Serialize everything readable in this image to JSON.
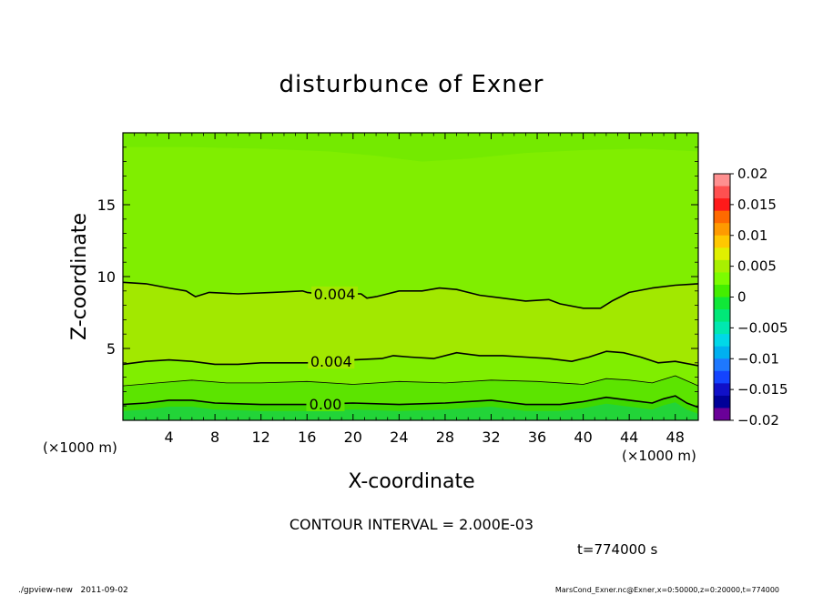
{
  "chart_data": {
    "type": "heatmap",
    "title": "disturbunce of Exner",
    "xlabel": "X-coordinate",
    "ylabel": "Z-coordinate",
    "x_unit_left": "(×1000 m)",
    "x_unit_right": "(×1000 m)",
    "x_unit_left_text": "(x1000 m)",
    "x_unit_right_text": "(x1000 m)",
    "xlim": [
      0,
      50
    ],
    "ylim": [
      0,
      20
    ],
    "x_ticks": [
      4,
      8,
      12,
      16,
      20,
      24,
      28,
      32,
      36,
      40,
      44,
      48
    ],
    "x_tick_labels": [
      "4",
      "8",
      "12",
      "16",
      "20",
      "24",
      "28",
      "32",
      "36",
      "40",
      "44",
      "48"
    ],
    "y_ticks": [
      5,
      10,
      15
    ],
    "y_tick_labels": [
      "5",
      "10",
      "15"
    ],
    "colorbar": {
      "labels": [
        "0.02",
        "0.015",
        "0.01",
        "0.005",
        "0",
        "−0.005",
        "−0.01",
        "−0.015",
        "−0.02"
      ],
      "values": [
        0.02,
        0.015,
        0.01,
        0.005,
        0,
        -0.005,
        -0.01,
        -0.015,
        -0.02
      ],
      "colors_top_to_bottom": [
        "#ff9090",
        "#ff5050",
        "#ff1a1a",
        "#ff6a00",
        "#ff9a00",
        "#ffc800",
        "#e0f000",
        "#a8f000",
        "#7cfc00",
        "#44ee00",
        "#10e838",
        "#00e878",
        "#00e8b0",
        "#00d8e8",
        "#00b0f0",
        "#1e78ff",
        "#1444ff",
        "#1010c8",
        "#000098",
        "#6a0098"
      ]
    },
    "bands": [
      {
        "range": "0.004 to 0.006",
        "color": "#80ee00"
      },
      {
        "range": "0.002 to 0.004",
        "color": "#a2e800"
      },
      {
        "range": "0.001 to 0.002",
        "color": "#80ee00"
      },
      {
        "range": "0 to 0.001",
        "color": "#5ce400"
      },
      {
        "range": "near 0",
        "color": "#3ed800"
      },
      {
        "range": "below 0",
        "color": "#22d438"
      }
    ],
    "contours": [
      {
        "label": "0.004",
        "label_x": 18.4,
        "points": [
          [
            0,
            9.6
          ],
          [
            2,
            9.5
          ],
          [
            4,
            9.2
          ],
          [
            5.5,
            9.0
          ],
          [
            6.3,
            8.6
          ],
          [
            7.5,
            8.9
          ],
          [
            10,
            8.8
          ],
          [
            13,
            8.9
          ],
          [
            15.6,
            9.0
          ],
          [
            16,
            8.9
          ],
          [
            17,
            8.8
          ],
          [
            20.7,
            8.8
          ],
          [
            21.2,
            8.5
          ],
          [
            22,
            8.6
          ],
          [
            24,
            9.0
          ],
          [
            26,
            9.0
          ],
          [
            27.5,
            9.2
          ],
          [
            29,
            9.1
          ],
          [
            31,
            8.7
          ],
          [
            33,
            8.5
          ],
          [
            35,
            8.3
          ],
          [
            37,
            8.4
          ],
          [
            38,
            8.1
          ],
          [
            40,
            7.8
          ],
          [
            41.5,
            7.8
          ],
          [
            42.5,
            8.3
          ],
          [
            44,
            8.9
          ],
          [
            46,
            9.2
          ],
          [
            48,
            9.4
          ],
          [
            50,
            9.5
          ]
        ]
      },
      {
        "label": "0.004",
        "label_x": 18.1,
        "points": [
          [
            0,
            3.9
          ],
          [
            2,
            4.1
          ],
          [
            4,
            4.2
          ],
          [
            6,
            4.1
          ],
          [
            8,
            3.9
          ],
          [
            10,
            3.9
          ],
          [
            12,
            4.0
          ],
          [
            14,
            4.0
          ],
          [
            16,
            4.0
          ],
          [
            20,
            4.2
          ],
          [
            22.5,
            4.3
          ],
          [
            23.5,
            4.5
          ],
          [
            25,
            4.4
          ],
          [
            27,
            4.3
          ],
          [
            29,
            4.7
          ],
          [
            31,
            4.5
          ],
          [
            33,
            4.5
          ],
          [
            35,
            4.4
          ],
          [
            37,
            4.3
          ],
          [
            39,
            4.1
          ],
          [
            40.5,
            4.4
          ],
          [
            42,
            4.8
          ],
          [
            43.5,
            4.7
          ],
          [
            45,
            4.4
          ],
          [
            46.5,
            4.0
          ],
          [
            48,
            4.1
          ],
          [
            50,
            3.8
          ]
        ]
      },
      {
        "label": "",
        "label_x": 0,
        "points": [
          [
            0,
            2.4
          ],
          [
            3,
            2.6
          ],
          [
            6,
            2.8
          ],
          [
            9,
            2.6
          ],
          [
            12,
            2.6
          ],
          [
            16,
            2.7
          ],
          [
            20,
            2.5
          ],
          [
            24,
            2.7
          ],
          [
            28,
            2.6
          ],
          [
            32,
            2.8
          ],
          [
            36,
            2.7
          ],
          [
            40,
            2.5
          ],
          [
            42,
            2.9
          ],
          [
            44,
            2.8
          ],
          [
            46,
            2.6
          ],
          [
            48,
            3.1
          ],
          [
            50,
            2.4
          ]
        ]
      },
      {
        "label": "0.00",
        "label_x": 17.6,
        "points": [
          [
            0,
            1.1
          ],
          [
            2,
            1.2
          ],
          [
            4,
            1.4
          ],
          [
            6,
            1.4
          ],
          [
            8,
            1.2
          ],
          [
            12,
            1.1
          ],
          [
            16,
            1.1
          ],
          [
            20,
            1.2
          ],
          [
            24,
            1.1
          ],
          [
            28,
            1.2
          ],
          [
            32,
            1.4
          ],
          [
            33,
            1.3
          ],
          [
            35,
            1.1
          ],
          [
            38,
            1.1
          ],
          [
            40,
            1.3
          ],
          [
            42,
            1.6
          ],
          [
            44,
            1.4
          ],
          [
            46,
            1.2
          ],
          [
            47,
            1.5
          ],
          [
            48,
            1.7
          ],
          [
            49,
            1.2
          ],
          [
            50,
            0.9
          ]
        ]
      }
    ]
  },
  "footer": {
    "contour_interval": "CONTOUR INTERVAL = 2.000E-03",
    "time": "t=774000 s",
    "left_stamp": "./gpview-new   2011-09-02",
    "right_stamp": "MarsCond_Exner.nc@Exner,x=0:50000,z=0:20000,t=774000"
  }
}
